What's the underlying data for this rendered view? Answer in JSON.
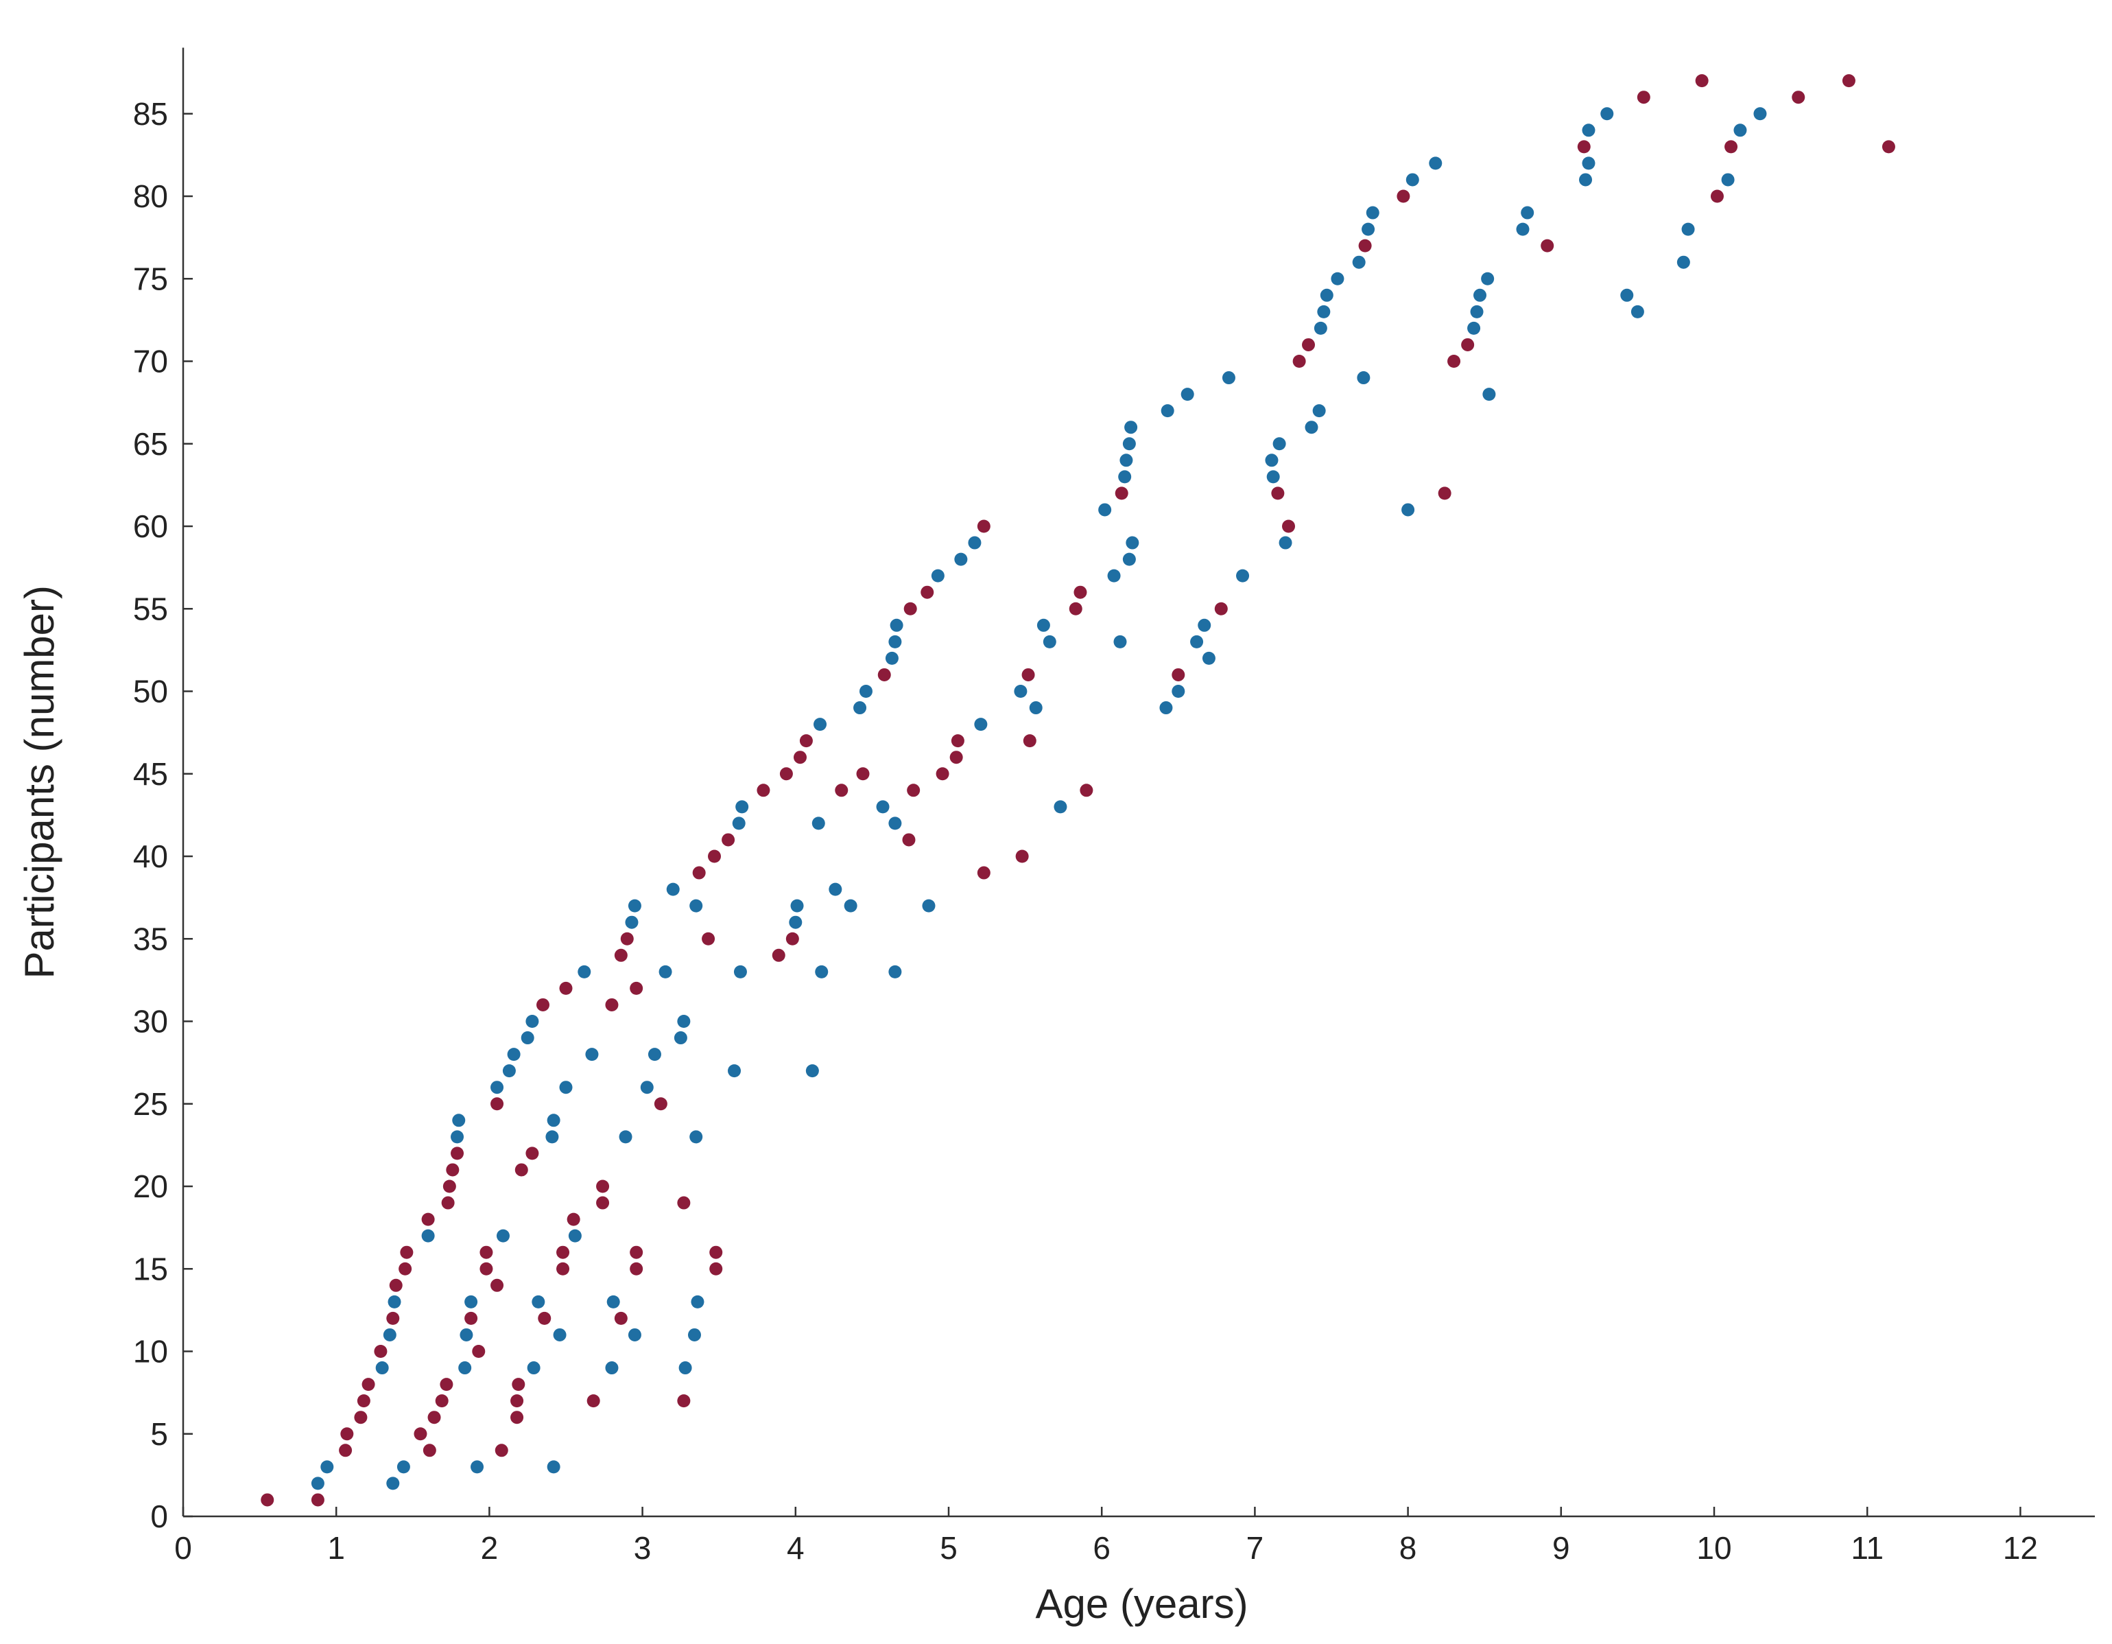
{
  "chart_data": {
    "type": "scatter",
    "title": "",
    "xlabel": "Age (years)",
    "ylabel": "Participants (number)",
    "xlim": [
      0,
      12.5
    ],
    "ylim": [
      0,
      89
    ],
    "xticks": [
      0,
      1,
      2,
      3,
      4,
      5,
      6,
      7,
      8,
      9,
      10,
      11,
      12
    ],
    "yticks": [
      0,
      5,
      10,
      15,
      20,
      25,
      30,
      35,
      40,
      45,
      50,
      55,
      60,
      65,
      70,
      75,
      80,
      85
    ],
    "grid": false,
    "legend": "none",
    "colors": {
      "blue": "#1f6fa3",
      "red": "#8c1c3a"
    },
    "series": [
      {
        "color": "blue",
        "points": [
          [
            0.88,
            2
          ],
          [
            0.94,
            3
          ],
          [
            1.3,
            9
          ],
          [
            1.35,
            11
          ],
          [
            1.38,
            13
          ],
          [
            1.6,
            17
          ],
          [
            1.79,
            23
          ],
          [
            1.8,
            24
          ],
          [
            1.37,
            2
          ],
          [
            1.44,
            3
          ],
          [
            1.84,
            9
          ],
          [
            1.85,
            11
          ],
          [
            1.88,
            13
          ],
          [
            2.09,
            17
          ],
          [
            2.05,
            26
          ],
          [
            2.13,
            27
          ],
          [
            2.16,
            28
          ],
          [
            2.25,
            29
          ],
          [
            2.28,
            30
          ],
          [
            1.92,
            3
          ],
          [
            2.29,
            9
          ],
          [
            2.32,
            13
          ],
          [
            2.41,
            23
          ],
          [
            2.42,
            24
          ],
          [
            2.46,
            11
          ],
          [
            2.5,
            26
          ],
          [
            2.56,
            17
          ],
          [
            2.62,
            33
          ],
          [
            2.67,
            28
          ],
          [
            2.42,
            3
          ],
          [
            2.8,
            9
          ],
          [
            2.81,
            13
          ],
          [
            2.89,
            23
          ],
          [
            2.93,
            36
          ],
          [
            2.95,
            37
          ],
          [
            2.95,
            11
          ],
          [
            3.03,
            26
          ],
          [
            3.08,
            28
          ],
          [
            3.15,
            33
          ],
          [
            3.2,
            38
          ],
          [
            3.25,
            29
          ],
          [
            3.27,
            30
          ],
          [
            3.28,
            9
          ],
          [
            3.34,
            11
          ],
          [
            3.36,
            13
          ],
          [
            3.35,
            23
          ],
          [
            3.35,
            37
          ],
          [
            3.6,
            27
          ],
          [
            3.64,
            33
          ],
          [
            3.63,
            42
          ],
          [
            3.65,
            43
          ],
          [
            4.0,
            36
          ],
          [
            4.01,
            37
          ],
          [
            4.11,
            27
          ],
          [
            4.15,
            42
          ],
          [
            4.16,
            48
          ],
          [
            4.17,
            33
          ],
          [
            4.26,
            38
          ],
          [
            4.36,
            37
          ],
          [
            4.42,
            49
          ],
          [
            4.46,
            50
          ],
          [
            4.57,
            43
          ],
          [
            4.63,
            52
          ],
          [
            4.65,
            53
          ],
          [
            4.66,
            54
          ],
          [
            4.65,
            42
          ],
          [
            4.65,
            33
          ],
          [
            4.87,
            37
          ],
          [
            4.93,
            57
          ],
          [
            5.08,
            58
          ],
          [
            5.17,
            59
          ],
          [
            5.21,
            48
          ],
          [
            5.47,
            50
          ],
          [
            5.57,
            49
          ],
          [
            5.62,
            54
          ],
          [
            5.66,
            53
          ],
          [
            5.73,
            43
          ],
          [
            6.02,
            61
          ],
          [
            6.08,
            57
          ],
          [
            6.12,
            53
          ],
          [
            6.15,
            63
          ],
          [
            6.16,
            64
          ],
          [
            6.18,
            65
          ],
          [
            6.19,
            66
          ],
          [
            6.18,
            58
          ],
          [
            6.2,
            59
          ],
          [
            6.43,
            67
          ],
          [
            6.56,
            68
          ],
          [
            6.42,
            49
          ],
          [
            6.5,
            50
          ],
          [
            6.62,
            53
          ],
          [
            6.67,
            54
          ],
          [
            6.7,
            52
          ],
          [
            6.83,
            69
          ],
          [
            6.92,
            57
          ],
          [
            7.11,
            64
          ],
          [
            7.12,
            63
          ],
          [
            7.16,
            65
          ],
          [
            7.2,
            59
          ],
          [
            7.37,
            66
          ],
          [
            7.42,
            67
          ],
          [
            7.43,
            72
          ],
          [
            7.45,
            73
          ],
          [
            7.47,
            74
          ],
          [
            7.54,
            75
          ],
          [
            7.68,
            76
          ],
          [
            7.74,
            78
          ],
          [
            7.77,
            79
          ],
          [
            7.71,
            69
          ],
          [
            8.0,
            61
          ],
          [
            8.03,
            81
          ],
          [
            8.18,
            82
          ],
          [
            8.43,
            72
          ],
          [
            8.45,
            73
          ],
          [
            8.47,
            74
          ],
          [
            8.52,
            75
          ],
          [
            8.53,
            68
          ],
          [
            8.75,
            78
          ],
          [
            8.78,
            79
          ],
          [
            9.16,
            81
          ],
          [
            9.18,
            82
          ],
          [
            9.18,
            84
          ],
          [
            9.3,
            85
          ],
          [
            9.43,
            74
          ],
          [
            9.5,
            73
          ],
          [
            9.8,
            76
          ],
          [
            9.83,
            78
          ],
          [
            10.09,
            81
          ],
          [
            10.17,
            84
          ],
          [
            10.3,
            85
          ]
        ]
      },
      {
        "color": "red",
        "points": [
          [
            0.55,
            1
          ],
          [
            0.88,
            1
          ],
          [
            1.06,
            4
          ],
          [
            1.07,
            5
          ],
          [
            1.16,
            6
          ],
          [
            1.18,
            7
          ],
          [
            1.21,
            8
          ],
          [
            1.29,
            10
          ],
          [
            1.37,
            12
          ],
          [
            1.39,
            14
          ],
          [
            1.45,
            15
          ],
          [
            1.46,
            16
          ],
          [
            1.6,
            18
          ],
          [
            1.73,
            19
          ],
          [
            1.74,
            20
          ],
          [
            1.76,
            21
          ],
          [
            1.79,
            22
          ],
          [
            1.55,
            5
          ],
          [
            1.61,
            4
          ],
          [
            1.64,
            6
          ],
          [
            1.69,
            7
          ],
          [
            1.72,
            8
          ],
          [
            1.88,
            12
          ],
          [
            1.93,
            10
          ],
          [
            1.98,
            15
          ],
          [
            1.98,
            16
          ],
          [
            2.05,
            14
          ],
          [
            2.05,
            25
          ],
          [
            2.08,
            4
          ],
          [
            2.18,
            6
          ],
          [
            2.18,
            7
          ],
          [
            2.19,
            8
          ],
          [
            2.21,
            21
          ],
          [
            2.28,
            22
          ],
          [
            2.36,
            12
          ],
          [
            2.35,
            31
          ],
          [
            2.48,
            15
          ],
          [
            2.48,
            16
          ],
          [
            2.5,
            32
          ],
          [
            2.55,
            18
          ],
          [
            2.68,
            7
          ],
          [
            2.74,
            19
          ],
          [
            2.74,
            20
          ],
          [
            2.8,
            31
          ],
          [
            2.86,
            12
          ],
          [
            2.86,
            34
          ],
          [
            2.9,
            35
          ],
          [
            2.96,
            15
          ],
          [
            2.96,
            16
          ],
          [
            2.96,
            32
          ],
          [
            3.12,
            25
          ],
          [
            3.27,
            7
          ],
          [
            3.27,
            19
          ],
          [
            3.37,
            39
          ],
          [
            3.43,
            35
          ],
          [
            3.47,
            40
          ],
          [
            3.48,
            15
          ],
          [
            3.48,
            16
          ],
          [
            3.56,
            41
          ],
          [
            3.79,
            44
          ],
          [
            3.89,
            34
          ],
          [
            3.94,
            45
          ],
          [
            3.98,
            35
          ],
          [
            4.03,
            46
          ],
          [
            4.07,
            47
          ],
          [
            4.3,
            44
          ],
          [
            4.44,
            45
          ],
          [
            4.58,
            51
          ],
          [
            4.74,
            41
          ],
          [
            4.75,
            55
          ],
          [
            4.77,
            44
          ],
          [
            4.86,
            56
          ],
          [
            4.96,
            45
          ],
          [
            5.05,
            46
          ],
          [
            5.06,
            47
          ],
          [
            5.23,
            39
          ],
          [
            5.23,
            60
          ],
          [
            5.48,
            40
          ],
          [
            5.52,
            51
          ],
          [
            5.53,
            47
          ],
          [
            5.83,
            55
          ],
          [
            5.86,
            56
          ],
          [
            5.9,
            44
          ],
          [
            6.13,
            62
          ],
          [
            6.5,
            51
          ],
          [
            6.78,
            55
          ],
          [
            7.15,
            62
          ],
          [
            7.22,
            60
          ],
          [
            7.29,
            70
          ],
          [
            7.35,
            71
          ],
          [
            7.72,
            77
          ],
          [
            7.97,
            80
          ],
          [
            8.24,
            62
          ],
          [
            8.3,
            70
          ],
          [
            8.39,
            71
          ],
          [
            8.91,
            77
          ],
          [
            9.15,
            83
          ],
          [
            9.54,
            86
          ],
          [
            9.92,
            87
          ],
          [
            10.02,
            80
          ],
          [
            10.11,
            83
          ],
          [
            10.55,
            86
          ],
          [
            10.88,
            87
          ],
          [
            11.14,
            83
          ]
        ]
      }
    ]
  }
}
